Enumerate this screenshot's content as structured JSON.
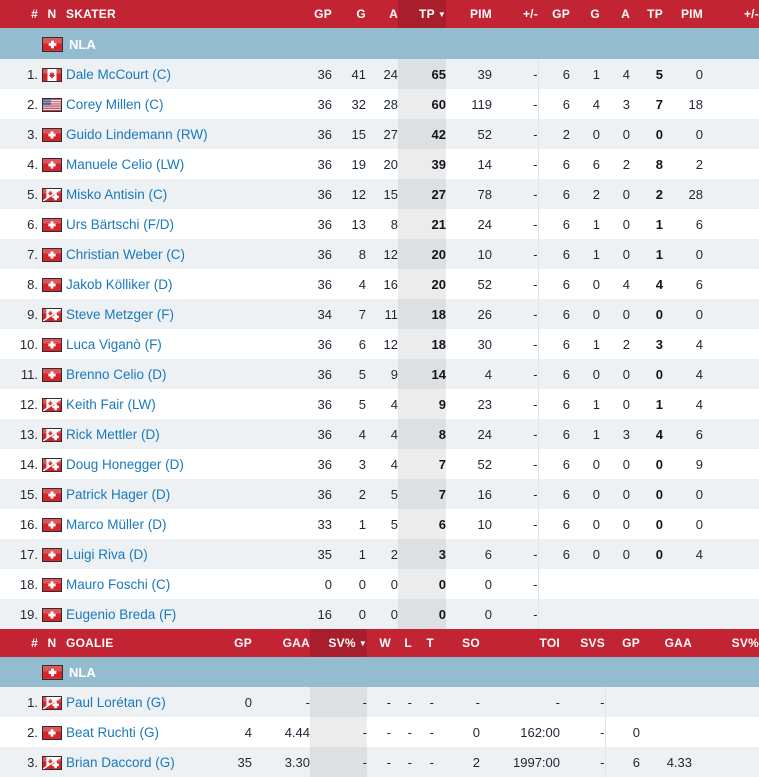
{
  "colors": {
    "header_red": "#c32433",
    "sorted_header_red": "#a91e2c",
    "league_bar_blue": "#93bccf",
    "row_alt_gray": "#edf1f4",
    "sorted_cell_gray": "#dde0e3",
    "link_blue": "#1879bd",
    "text_dark": "#1d2733"
  },
  "skater_table": {
    "headers": [
      "#",
      "N",
      "SKATER",
      "GP",
      "G",
      "A",
      "TP",
      "PIM",
      "+/-",
      "GP",
      "G",
      "A",
      "TP",
      "PIM",
      "+/-"
    ],
    "sort_column_index": 6,
    "sort_indicator": "▼",
    "league": "NLA",
    "league_flag": "switzerland",
    "rows": [
      {
        "rank": "1.",
        "flag": "canada",
        "name": "Dale McCourt (C)",
        "stats": [
          "36",
          "41",
          "24",
          "65",
          "39",
          "-",
          "6",
          "1",
          "4",
          "5",
          "0",
          ""
        ]
      },
      {
        "rank": "2.",
        "flag": "usa",
        "name": "Corey Millen (C)",
        "stats": [
          "36",
          "32",
          "28",
          "60",
          "119",
          "-",
          "6",
          "4",
          "3",
          "7",
          "18",
          ""
        ]
      },
      {
        "rank": "3.",
        "flag": "switzerland",
        "name": "Guido Lindemann (RW)",
        "stats": [
          "36",
          "15",
          "27",
          "42",
          "52",
          "-",
          "2",
          "0",
          "0",
          "0",
          "0",
          ""
        ]
      },
      {
        "rank": "4.",
        "flag": "switzerland",
        "name": "Manuele Celio (LW)",
        "stats": [
          "36",
          "19",
          "20",
          "39",
          "14",
          "-",
          "6",
          "6",
          "2",
          "8",
          "2",
          ""
        ]
      },
      {
        "rank": "5.",
        "flag": "canada-switzerland",
        "name": "Misko Antisin (C)",
        "stats": [
          "36",
          "12",
          "15",
          "27",
          "78",
          "-",
          "6",
          "2",
          "0",
          "2",
          "28",
          ""
        ]
      },
      {
        "rank": "6.",
        "flag": "switzerland",
        "name": "Urs Bärtschi (F/D)",
        "stats": [
          "36",
          "13",
          "8",
          "21",
          "24",
          "-",
          "6",
          "1",
          "0",
          "1",
          "6",
          ""
        ]
      },
      {
        "rank": "7.",
        "flag": "switzerland",
        "name": "Christian Weber (C)",
        "stats": [
          "36",
          "8",
          "12",
          "20",
          "10",
          "-",
          "6",
          "1",
          "0",
          "1",
          "0",
          ""
        ]
      },
      {
        "rank": "8.",
        "flag": "switzerland",
        "name": "Jakob Kölliker (D)",
        "stats": [
          "36",
          "4",
          "16",
          "20",
          "52",
          "-",
          "6",
          "0",
          "4",
          "4",
          "6",
          ""
        ]
      },
      {
        "rank": "9.",
        "flag": "canada-switzerland",
        "name": "Steve Metzger (F)",
        "stats": [
          "34",
          "7",
          "11",
          "18",
          "26",
          "-",
          "6",
          "0",
          "0",
          "0",
          "0",
          ""
        ]
      },
      {
        "rank": "10.",
        "flag": "switzerland",
        "name": "Luca Viganò (F)",
        "stats": [
          "36",
          "6",
          "12",
          "18",
          "30",
          "-",
          "6",
          "1",
          "2",
          "3",
          "4",
          ""
        ]
      },
      {
        "rank": "11.",
        "flag": "switzerland",
        "name": "Brenno Celio (D)",
        "stats": [
          "36",
          "5",
          "9",
          "14",
          "4",
          "-",
          "6",
          "0",
          "0",
          "0",
          "4",
          ""
        ]
      },
      {
        "rank": "12.",
        "flag": "canada-switzerland",
        "name": "Keith Fair (LW)",
        "stats": [
          "36",
          "5",
          "4",
          "9",
          "23",
          "-",
          "6",
          "1",
          "0",
          "1",
          "4",
          ""
        ]
      },
      {
        "rank": "13.",
        "flag": "canada-switzerland",
        "name": "Rick Mettler (D)",
        "stats": [
          "36",
          "4",
          "4",
          "8",
          "24",
          "-",
          "6",
          "1",
          "3",
          "4",
          "6",
          ""
        ]
      },
      {
        "rank": "14.",
        "flag": "canada-switzerland",
        "name": "Doug Honegger (D)",
        "stats": [
          "36",
          "3",
          "4",
          "7",
          "52",
          "-",
          "6",
          "0",
          "0",
          "0",
          "9",
          ""
        ]
      },
      {
        "rank": "15.",
        "flag": "switzerland",
        "name": "Patrick Hager (D)",
        "stats": [
          "36",
          "2",
          "5",
          "7",
          "16",
          "-",
          "6",
          "0",
          "0",
          "0",
          "0",
          ""
        ]
      },
      {
        "rank": "16.",
        "flag": "switzerland",
        "name": "Marco Müller (D)",
        "stats": [
          "33",
          "1",
          "5",
          "6",
          "10",
          "-",
          "6",
          "0",
          "0",
          "0",
          "0",
          ""
        ]
      },
      {
        "rank": "17.",
        "flag": "switzerland",
        "name": "Luigi Riva (D)",
        "stats": [
          "35",
          "1",
          "2",
          "3",
          "6",
          "-",
          "6",
          "0",
          "0",
          "0",
          "4",
          ""
        ]
      },
      {
        "rank": "18.",
        "flag": "switzerland",
        "name": "Mauro Foschi (C)",
        "stats": [
          "0",
          "0",
          "0",
          "0",
          "0",
          "-",
          "",
          "",
          "",
          "",
          "",
          ""
        ]
      },
      {
        "rank": "19.",
        "flag": "switzerland",
        "name": "Eugenio Breda (F)",
        "stats": [
          "16",
          "0",
          "0",
          "0",
          "0",
          "-",
          "",
          "",
          "",
          "",
          "",
          ""
        ]
      }
    ]
  },
  "goalie_table": {
    "headers": [
      "#",
      "N",
      "GOALIE",
      "GP",
      "GAA",
      "SV%",
      "W",
      "L",
      "T",
      "SO",
      "TOI",
      "SVS",
      "GP",
      "GAA",
      "SV%"
    ],
    "sort_column_index": 5,
    "sort_indicator": "▼",
    "league": "NLA",
    "league_flag": "switzerland",
    "rows": [
      {
        "rank": "1.",
        "flag": "canada-switzerland",
        "name": "Paul Lorétan (G)",
        "stats": [
          "0",
          "-",
          "-",
          "-",
          "-",
          "-",
          "-",
          "-",
          "-",
          "",
          "",
          ""
        ]
      },
      {
        "rank": "2.",
        "flag": "switzerland",
        "name": "Beat Ruchti (G)",
        "stats": [
          "4",
          "4.44",
          "-",
          "-",
          "-",
          "-",
          "0",
          "162:00",
          "-",
          "0",
          "",
          ""
        ]
      },
      {
        "rank": "3.",
        "flag": "canada-switzerland",
        "name": "Brian Daccord (G)",
        "stats": [
          "35",
          "3.30",
          "-",
          "-",
          "-",
          "-",
          "2",
          "1997:00",
          "-",
          "6",
          "4.33",
          ""
        ]
      }
    ]
  }
}
